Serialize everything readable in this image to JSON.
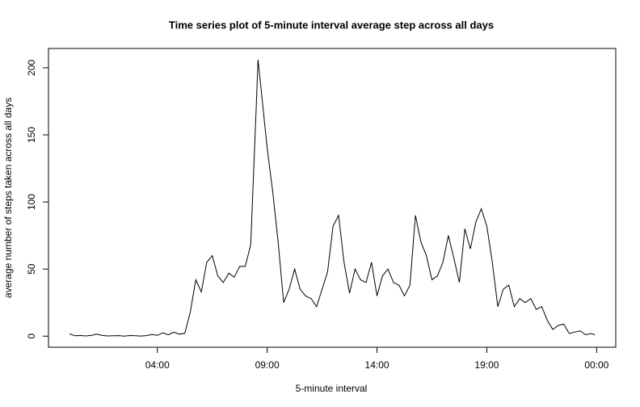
{
  "chart_data": {
    "type": "line",
    "title": "Time series plot of 5-minute interval average step across all days",
    "xlabel": "5-minute interval",
    "ylabel": "average number of steps taken across all days",
    "x": [
      0,
      0.25,
      0.5,
      0.75,
      1,
      1.25,
      1.5,
      1.75,
      2,
      2.25,
      2.5,
      2.75,
      3,
      3.25,
      3.5,
      3.75,
      4,
      4.25,
      4.5,
      4.75,
      5,
      5.25,
      5.5,
      5.75,
      6,
      6.25,
      6.5,
      6.75,
      7,
      7.25,
      7.5,
      7.75,
      8,
      8.25,
      8.5,
      8.5833,
      8.75,
      9,
      9.25,
      9.5,
      9.75,
      10,
      10.25,
      10.5,
      10.75,
      11,
      11.25,
      11.5,
      11.75,
      12,
      12.25,
      12.5,
      12.75,
      13,
      13.25,
      13.5,
      13.75,
      14,
      14.25,
      14.5,
      14.75,
      15,
      15.25,
      15.5,
      15.75,
      16,
      16.25,
      16.5,
      16.75,
      17,
      17.25,
      17.5,
      17.75,
      18,
      18.25,
      18.5,
      18.75,
      19,
      19.25,
      19.5,
      19.75,
      20,
      20.25,
      20.5,
      20.75,
      21,
      21.25,
      21.5,
      21.75,
      22,
      22.25,
      22.5,
      22.75,
      23,
      23.25,
      23.5,
      23.75,
      23.9167
    ],
    "values": [
      1.7,
      0.3,
      0.5,
      0.2,
      0.6,
      1.5,
      0.5,
      0.2,
      0.3,
      0.4,
      0,
      0.5,
      0.3,
      0.1,
      0.4,
      1.2,
      0.6,
      2.5,
      1,
      3,
      1.5,
      2.2,
      18,
      42,
      33,
      55,
      60,
      45,
      40,
      47,
      44,
      52,
      52,
      68,
      170,
      206,
      180,
      140,
      108,
      70,
      25,
      35,
      50,
      35,
      30,
      28,
      22,
      35,
      48,
      82,
      90,
      55,
      32,
      50,
      42,
      40,
      55,
      30,
      45,
      50,
      40,
      38,
      30,
      38,
      90,
      70,
      60,
      42,
      45,
      55,
      75,
      58,
      40,
      80,
      65,
      85,
      95,
      82,
      55,
      22,
      35,
      38,
      22,
      28,
      25,
      28,
      20,
      22,
      12,
      5,
      8,
      9,
      2,
      3,
      4,
      1,
      2,
      1
    ],
    "color": "#000000",
    "xlim": [
      -0.957,
      24.87
    ],
    "xticks": [
      {
        "value": 4,
        "label": "04:00"
      },
      {
        "value": 9,
        "label": "09:00"
      },
      {
        "value": 14,
        "label": "14:00"
      },
      {
        "value": 19,
        "label": "19:00"
      },
      {
        "value": 24,
        "label": "00:00"
      }
    ],
    "ylim": [
      -8.25,
      214.4
    ],
    "yticks": [
      0,
      50,
      100,
      150,
      200
    ]
  }
}
